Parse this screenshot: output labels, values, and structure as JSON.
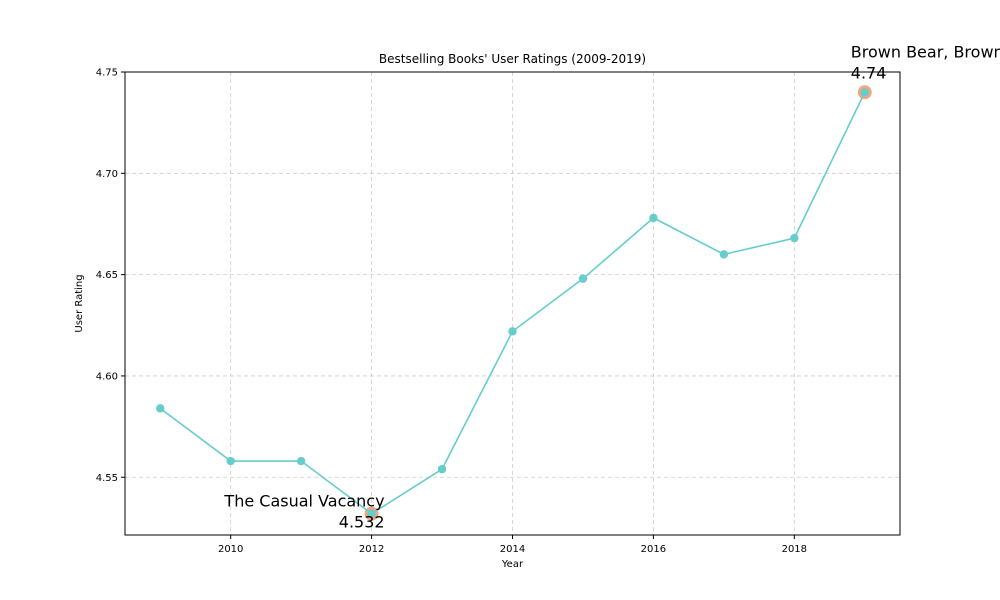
{
  "chart_data": {
    "type": "line",
    "title": "Bestselling Books' User Ratings (2009-2019)",
    "xlabel": "Year",
    "ylabel": "User Rating",
    "x": [
      2009,
      2010,
      2011,
      2012,
      2013,
      2014,
      2015,
      2016,
      2017,
      2018,
      2019
    ],
    "series": [
      {
        "values": [
          4.584,
          4.558,
          4.558,
          4.532,
          4.554,
          4.622,
          4.648,
          4.678,
          4.66,
          4.668,
          4.74
        ],
        "color": "#66CDCC"
      }
    ],
    "xlim": [
      2008.5,
      2019.5
    ],
    "ylim": [
      4.5215,
      4.75
    ],
    "x_ticks": [
      2010,
      2012,
      2014,
      2016,
      2018
    ],
    "y_ticks": [
      4.55,
      4.6,
      4.65,
      4.7,
      4.75
    ],
    "y_tick_labels": [
      "4.55",
      "4.60",
      "4.65",
      "4.70",
      "4.75"
    ],
    "grid": true,
    "highlights": [
      {
        "x": 2012,
        "y": 4.532,
        "label": "The Casual Vacancy",
        "value_text": "4.532",
        "color": "#F4A582"
      },
      {
        "x": 2019,
        "y": 4.74,
        "label": "Brown Bear, Brown Bear, What Do You See?",
        "value_text": "4.74",
        "color": "#F4A582"
      }
    ]
  }
}
